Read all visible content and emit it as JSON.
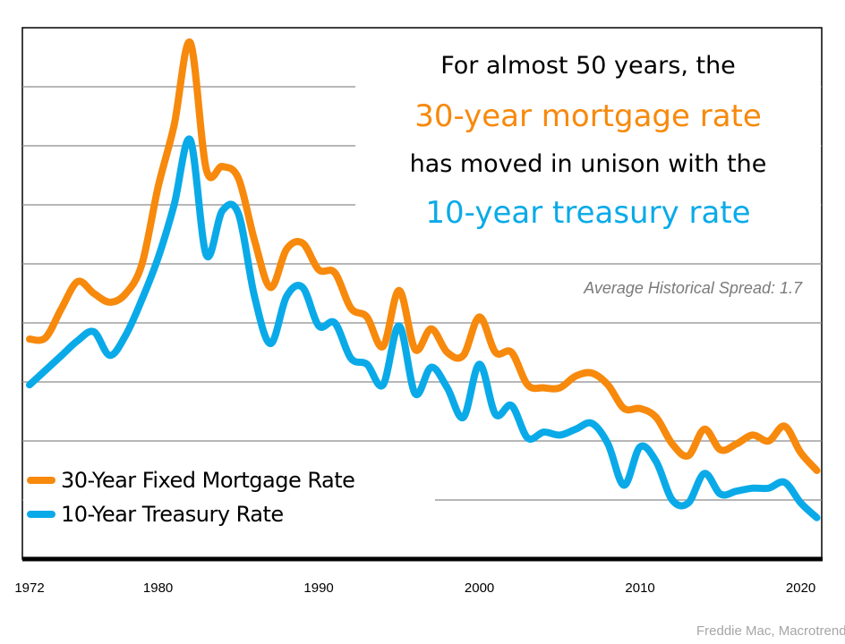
{
  "chart_data": {
    "type": "line",
    "title_lines": [
      "For almost 50 years, the",
      "30-year mortgage rate",
      "has moved in unison with the",
      "10-year treasury rate"
    ],
    "annotation": "Average Historical Spread: 1.7",
    "xlabel": "",
    "ylabel": "",
    "xlim": [
      1972,
      2021
    ],
    "ylim": [
      0,
      18
    ],
    "ygrid_step": 2,
    "grid": true,
    "legend_placement": "bottom-left",
    "x_ticks": [
      "1972",
      "1980",
      "1990",
      "2000",
      "2010",
      "2020"
    ],
    "x": [
      1972,
      1973,
      1974,
      1975,
      1976,
      1977,
      1978,
      1979,
      1980,
      1981,
      1982,
      1983,
      1984,
      1985,
      1986,
      1987,
      1988,
      1989,
      1990,
      1991,
      1992,
      1993,
      1994,
      1995,
      1996,
      1997,
      1998,
      1999,
      2000,
      2001,
      2002,
      2003,
      2004,
      2005,
      2006,
      2007,
      2008,
      2009,
      2010,
      2011,
      2012,
      2013,
      2014,
      2015,
      2016,
      2017,
      2018,
      2019,
      2020,
      2021
    ],
    "series": [
      {
        "name": "30-Year Fixed Mortgage Rate",
        "color": "#F7890C",
        "values": [
          7.45,
          7.5,
          8.5,
          9.4,
          9.0,
          8.7,
          9.0,
          10.0,
          12.6,
          14.7,
          17.5,
          13.2,
          13.3,
          12.9,
          10.8,
          9.2,
          10.5,
          10.7,
          9.8,
          9.7,
          8.5,
          8.2,
          7.2,
          9.1,
          7.1,
          7.8,
          7.0,
          6.9,
          8.2,
          7.0,
          7.0,
          5.9,
          5.8,
          5.8,
          6.2,
          6.3,
          5.9,
          5.1,
          5.1,
          4.8,
          3.9,
          3.5,
          4.4,
          3.7,
          3.9,
          4.2,
          4.0,
          4.5,
          3.6,
          3.0
        ]
      },
      {
        "name": "10-Year Treasury Rate",
        "color": "#0AAAE8",
        "values": [
          5.9,
          6.4,
          6.9,
          7.4,
          7.7,
          6.9,
          7.6,
          8.8,
          10.2,
          12.0,
          14.2,
          10.3,
          11.8,
          11.7,
          8.9,
          7.3,
          8.9,
          9.2,
          7.9,
          8.0,
          6.8,
          6.6,
          5.9,
          7.9,
          5.6,
          6.5,
          5.8,
          4.8,
          6.6,
          4.9,
          5.2,
          4.1,
          4.3,
          4.2,
          4.4,
          4.6,
          3.9,
          2.5,
          3.8,
          3.3,
          2.0,
          1.9,
          2.9,
          2.2,
          2.3,
          2.4,
          2.4,
          2.6,
          1.9,
          1.4
        ]
      }
    ],
    "source": "Freddie Mac, Macrotrends"
  }
}
